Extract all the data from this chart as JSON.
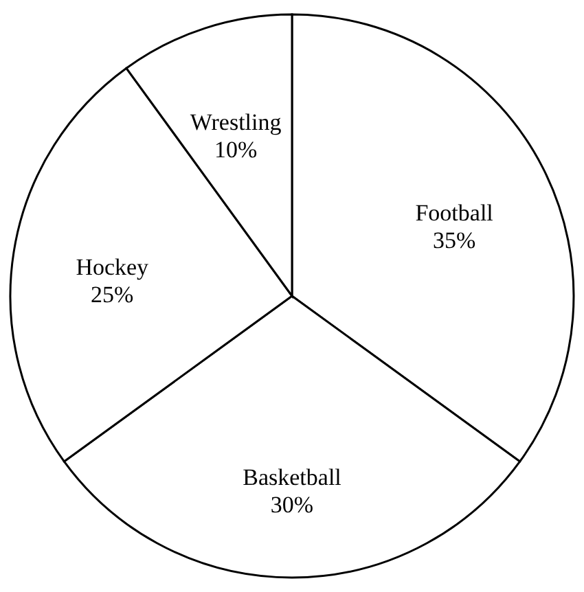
{
  "chart_data": {
    "type": "pie",
    "categories": [
      "Football",
      "Basketball",
      "Hockey",
      "Wrestling"
    ],
    "values": [
      35,
      30,
      25,
      10
    ],
    "value_labels": [
      "35%",
      "30%",
      "25%",
      "10%"
    ],
    "colors": [
      "#ffffff",
      "#ffffff",
      "#ffffff",
      "#ffffff"
    ]
  }
}
